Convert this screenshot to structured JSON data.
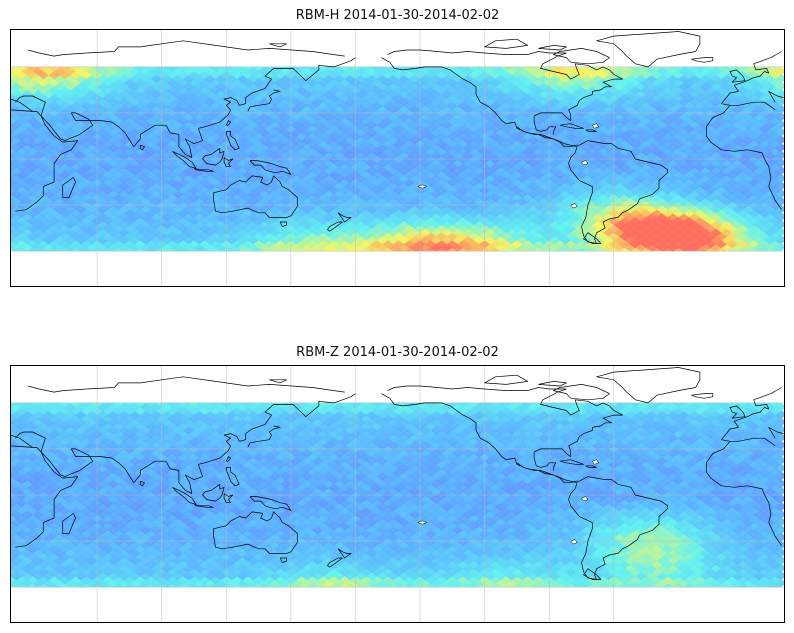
{
  "figure": {
    "panels": [
      {
        "id": "rbm-h",
        "title": "RBM-H 2014-01-30-2014-02-02",
        "hotspots": [
          {
            "lon": 35,
            "lat": 55,
            "level": 1.0
          },
          {
            "lon": -78,
            "lat": 55,
            "level": 0.8
          },
          {
            "lon": -150,
            "lat": -55,
            "level": 1.0
          },
          {
            "lon": -120,
            "lat": -55,
            "level": 0.7
          },
          {
            "lon": -45,
            "lat": -45,
            "level": 1.3
          },
          {
            "lon": -25,
            "lat": -50,
            "level": 1.4
          },
          {
            "lon": -60,
            "lat": -30,
            "level": 0.5
          },
          {
            "lon": 160,
            "lat": -55,
            "level": 0.6
          }
        ]
      },
      {
        "id": "rbm-z",
        "title": "RBM-Z 2014-01-30-2014-02-02",
        "hotspots": [
          {
            "lon": -45,
            "lat": -25,
            "level": 0.75
          },
          {
            "lon": -40,
            "lat": -45,
            "level": 0.6
          },
          {
            "lon": -110,
            "lat": -55,
            "level": 0.4
          },
          {
            "lon": 170,
            "lat": -60,
            "level": 0.5
          }
        ]
      }
    ],
    "colormap": [
      "#6a64ff",
      "#58b4ff",
      "#5ff0f0",
      "#f5f560",
      "#ff6a5a"
    ],
    "projection": "PlateCarree, central_longitude 180",
    "data_lat_range": [
      -60,
      60
    ],
    "gridlines": {
      "lons": [
        60,
        90,
        120,
        150,
        180,
        -150,
        -120,
        -90,
        -60
      ],
      "lats": [
        60,
        30,
        0,
        -30,
        -60
      ]
    }
  }
}
